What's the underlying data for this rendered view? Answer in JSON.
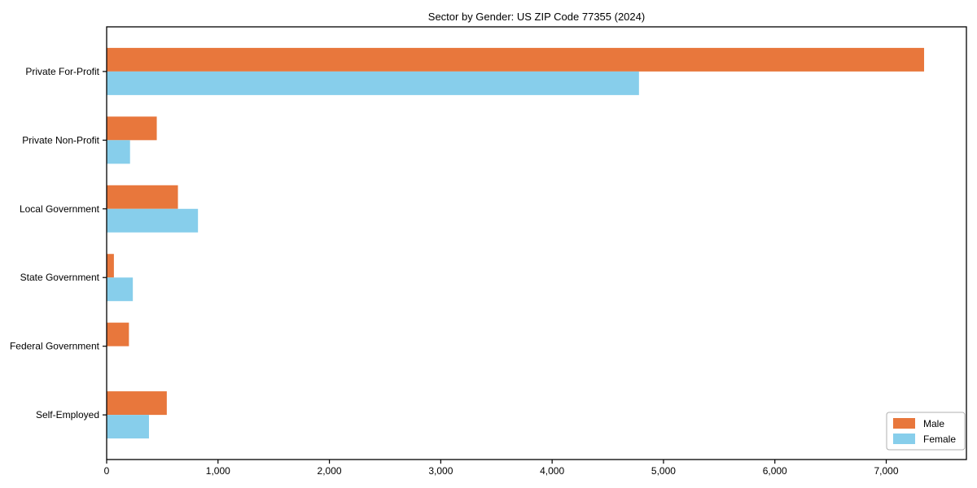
{
  "title": "Sector by Gender: US ZIP Code 77355 (2024)",
  "chart_data": {
    "type": "bar",
    "orientation": "horizontal",
    "title": "Sector by Gender: US ZIP Code 77355 (2024)",
    "categories": [
      "Private For-Profit",
      "Private Non-Profit",
      "Local Government",
      "State Government",
      "Federal Government",
      "Self-Employed"
    ],
    "series": [
      {
        "name": "Male",
        "color": "#e8773c",
        "values": [
          7340,
          450,
          640,
          65,
          200,
          540
        ]
      },
      {
        "name": "Female",
        "color": "#87ceeb",
        "values": [
          4780,
          210,
          820,
          235,
          0,
          380
        ]
      }
    ],
    "xlabel": "",
    "ylabel": "",
    "xlim": [
      0,
      7720
    ],
    "xticks": [
      0,
      1000,
      2000,
      3000,
      4000,
      5000,
      6000,
      7000
    ],
    "xtick_labels": [
      "0",
      "1,000",
      "2,000",
      "3,000",
      "4,000",
      "5,000",
      "6,000",
      "7,000"
    ],
    "grid": false,
    "legend": {
      "position": "lower-right",
      "entries": [
        {
          "label": "Male",
          "color": "#e8773c"
        },
        {
          "label": "Female",
          "color": "#87ceeb"
        }
      ]
    },
    "frame_color": "#000000",
    "background_color": "#ffffff"
  }
}
